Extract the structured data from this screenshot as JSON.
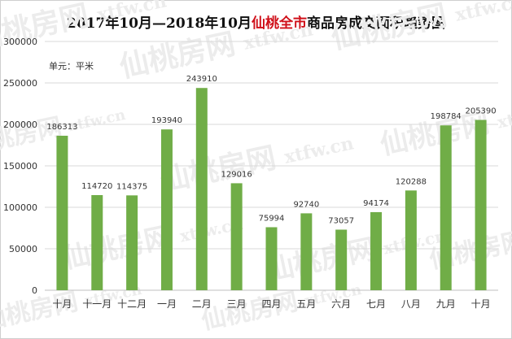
{
  "title": {
    "prefix": "2017年10月—2018年10月",
    "highlight": "仙桃全市",
    "suffix": "商品房成交面积趋势图"
  },
  "unit_label": "单元：平米",
  "watermark": {
    "brand": "仙桃房网",
    "domain": "xtfw.cn"
  },
  "colors": {
    "bar": "#70ad47",
    "title_highlight": "#d0101a",
    "grid": "#d9d9d9"
  },
  "chart_data": {
    "type": "bar",
    "title": "2017年10月—2018年10月仙桃全市商品房成交面积趋势图",
    "categories": [
      "十月",
      "十一月",
      "十二月",
      "一月",
      "二月",
      "三月",
      "四月",
      "五月",
      "六月",
      "七月",
      "八月",
      "九月",
      "十月"
    ],
    "values": [
      186313,
      114720,
      114375,
      193940,
      243910,
      129016,
      75994,
      92740,
      73057,
      94174,
      120288,
      198784,
      205390
    ],
    "ylim": [
      0,
      300000
    ],
    "yticks": [
      0,
      50000,
      100000,
      150000,
      200000,
      250000,
      300000
    ],
    "xlabel": "",
    "ylabel": "",
    "grid": true,
    "data_labels": true
  }
}
